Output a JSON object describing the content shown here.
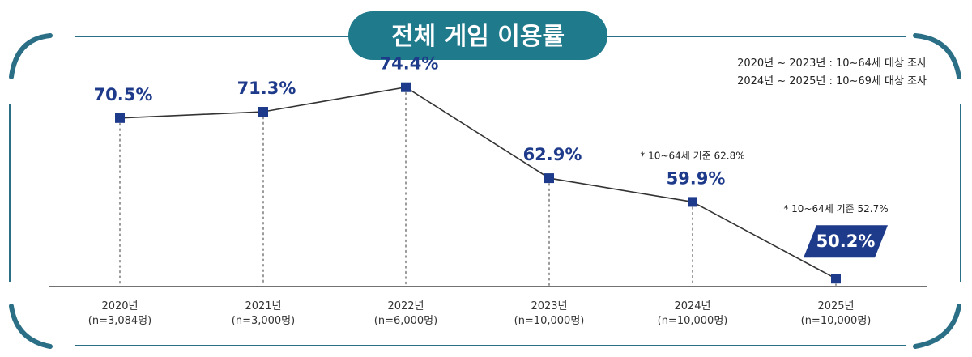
{
  "title": "전체 게임 이용률",
  "notes": [
    "2020년 ~ 2023년 : 10~64세 대상 조사",
    "2024년 ~ 2025년 : 10~69세 대상 조사"
  ],
  "colors": {
    "accent": "#1e3a8a",
    "frame": "#2b6f86",
    "title_bg": "#1f7a8c",
    "line": "#333333",
    "highlight_bg": "#1e3a8a"
  },
  "chart_data": {
    "type": "line",
    "categories": [
      "2020년",
      "2021년",
      "2022년",
      "2023년",
      "2024년",
      "2025년"
    ],
    "samples": [
      "(n=3,084명)",
      "(n=3,000명)",
      "(n=6,000명)",
      "(n=10,000명)",
      "(n=10,000명)",
      "(n=10,000명)"
    ],
    "values": [
      70.5,
      71.3,
      74.4,
      62.9,
      59.9,
      50.2
    ],
    "labels": [
      "70.5%",
      "71.3%",
      "74.4%",
      "62.9%",
      "59.9%",
      "50.2%"
    ],
    "annotations": [
      {
        "index": 4,
        "text": "* 10~64세 기준 62.8%"
      },
      {
        "index": 5,
        "text": "* 10~64세 기준 52.7%"
      }
    ],
    "highlight_index": 5,
    "unit": "%",
    "ylim": [
      45,
      80
    ],
    "grid": false,
    "legend": "none"
  }
}
